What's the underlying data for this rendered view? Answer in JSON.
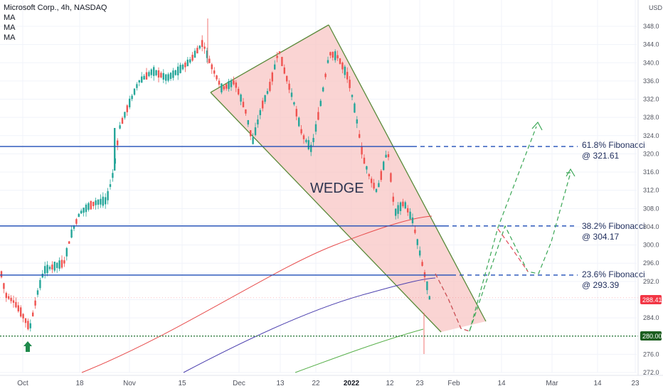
{
  "legend": {
    "title": "Microsoft Corp., 4h, NASDAQ",
    "ma1": "MA",
    "ma2": "MA",
    "ma3": "MA"
  },
  "axis": {
    "currency": "USD",
    "y_min": 270,
    "y_max": 350,
    "y_ticks": [
      272,
      276,
      280,
      284,
      288,
      292,
      296,
      300,
      304,
      308,
      312,
      316,
      320,
      324,
      328,
      332,
      336,
      340,
      344,
      348
    ],
    "x_ticks": [
      {
        "label": "Oct",
        "bold": false
      },
      {
        "label": "18",
        "bold": false
      },
      {
        "label": "Nov",
        "bold": false
      },
      {
        "label": "15",
        "bold": false
      },
      {
        "label": "Dec",
        "bold": false
      },
      {
        "label": "13",
        "bold": false
      },
      {
        "label": "22",
        "bold": false
      },
      {
        "label": "2022",
        "bold": true
      },
      {
        "label": "12",
        "bold": false
      },
      {
        "label": "23",
        "bold": false
      },
      {
        "label": "Feb",
        "bold": false
      },
      {
        "label": "14",
        "bold": false
      },
      {
        "label": "Mar",
        "bold": false
      },
      {
        "label": "14",
        "bold": false
      },
      {
        "label": "23",
        "bold": false
      }
    ]
  },
  "price_tags": {
    "last": {
      "value": "288.41",
      "color": "#f23645"
    },
    "support": {
      "value": "280.00",
      "color": "#1b5e20"
    }
  },
  "annotations": {
    "wedge": "WEDGE",
    "fib_618": {
      "line1": "61.8% Fibonacci",
      "line2": "@ 321.61"
    },
    "fib_382": {
      "line1": "38.2% Fibonacci",
      "line2": "@ 304.17"
    },
    "fib_236": {
      "line1": "23.6% Fibonacci",
      "line2": "@ 293.39"
    }
  },
  "colors": {
    "up": "#26a69a",
    "down": "#ef5350",
    "fib_line": "#1e4db7",
    "wedge_fill": "#f8c6c4",
    "wedge_line": "#5a8a3a",
    "ma_red": "#e74c4c",
    "ma_blue": "#4b3fae",
    "ma_green": "#58b04b",
    "arrow_up": "#1f8a4c",
    "path_green": "#3aa655",
    "path_red": "#e04a5a"
  },
  "chart_data": {
    "type": "candlestick",
    "symbol": "Microsoft Corp.",
    "interval": "4h",
    "exchange": "NASDAQ",
    "fibonacci_levels": [
      {
        "name": "61.8% Fibonacci",
        "value": 321.61
      },
      {
        "name": "38.2% Fibonacci",
        "value": 304.17
      },
      {
        "name": "23.6% Fibonacci",
        "value": 293.39
      }
    ],
    "support_level": 280.0,
    "last_price": 288.41,
    "approx_closes": [
      {
        "date": "Oct 1",
        "close": 289
      },
      {
        "date": "Oct 4",
        "close": 282
      },
      {
        "date": "Oct 13",
        "close": 296
      },
      {
        "date": "Oct 25",
        "close": 310
      },
      {
        "date": "Oct 28",
        "close": 324
      },
      {
        "date": "Nov 5",
        "close": 336
      },
      {
        "date": "Nov 19",
        "close": 343
      },
      {
        "date": "Dec 1",
        "close": 330
      },
      {
        "date": "Dec 3",
        "close": 323
      },
      {
        "date": "Dec 10",
        "close": 340
      },
      {
        "date": "Dec 20",
        "close": 321
      },
      {
        "date": "Dec 28",
        "close": 342
      },
      {
        "date": "Jan 5",
        "close": 318
      },
      {
        "date": "Jan 13",
        "close": 310
      },
      {
        "date": "Jan 20",
        "close": 300
      },
      {
        "date": "Jan 24",
        "close": 289
      }
    ]
  }
}
